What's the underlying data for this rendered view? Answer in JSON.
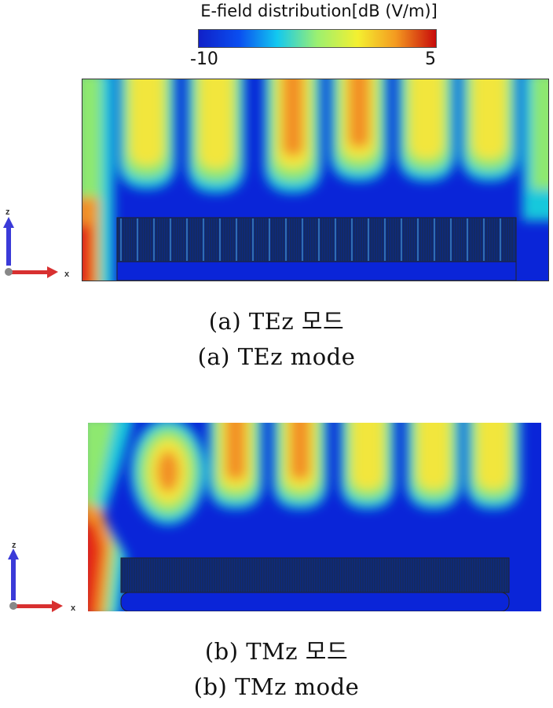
{
  "colorbar": {
    "title": "E-field distribution[dB (V/m)]",
    "min_label": "-10",
    "max_label": "5",
    "colors": [
      "#1020c8",
      "#0a4ef0",
      "#12c8f0",
      "#9cf070",
      "#f4f030",
      "#f49a20",
      "#c80a0a"
    ]
  },
  "panels": [
    {
      "id": "a",
      "axis_z_label": "z",
      "axis_x_label": "x",
      "caption_korean": "(a)  TEz  모드",
      "caption_english": "(a)  TEz  mode"
    },
    {
      "id": "b",
      "axis_z_label": "z",
      "axis_x_label": "x",
      "caption_korean": "(b)  TMz  모드",
      "caption_english": "(b)  TMz  mode"
    }
  ],
  "field_colors": {
    "background": "#0a25d8",
    "weak": "#18c8dc",
    "mid": "#8ee870",
    "strong": "#f2e63c",
    "peak": "#f29028",
    "max": "#e52818"
  },
  "axis_colors": {
    "z_axis": "#3a3ad8",
    "x_axis": "#d83030"
  }
}
